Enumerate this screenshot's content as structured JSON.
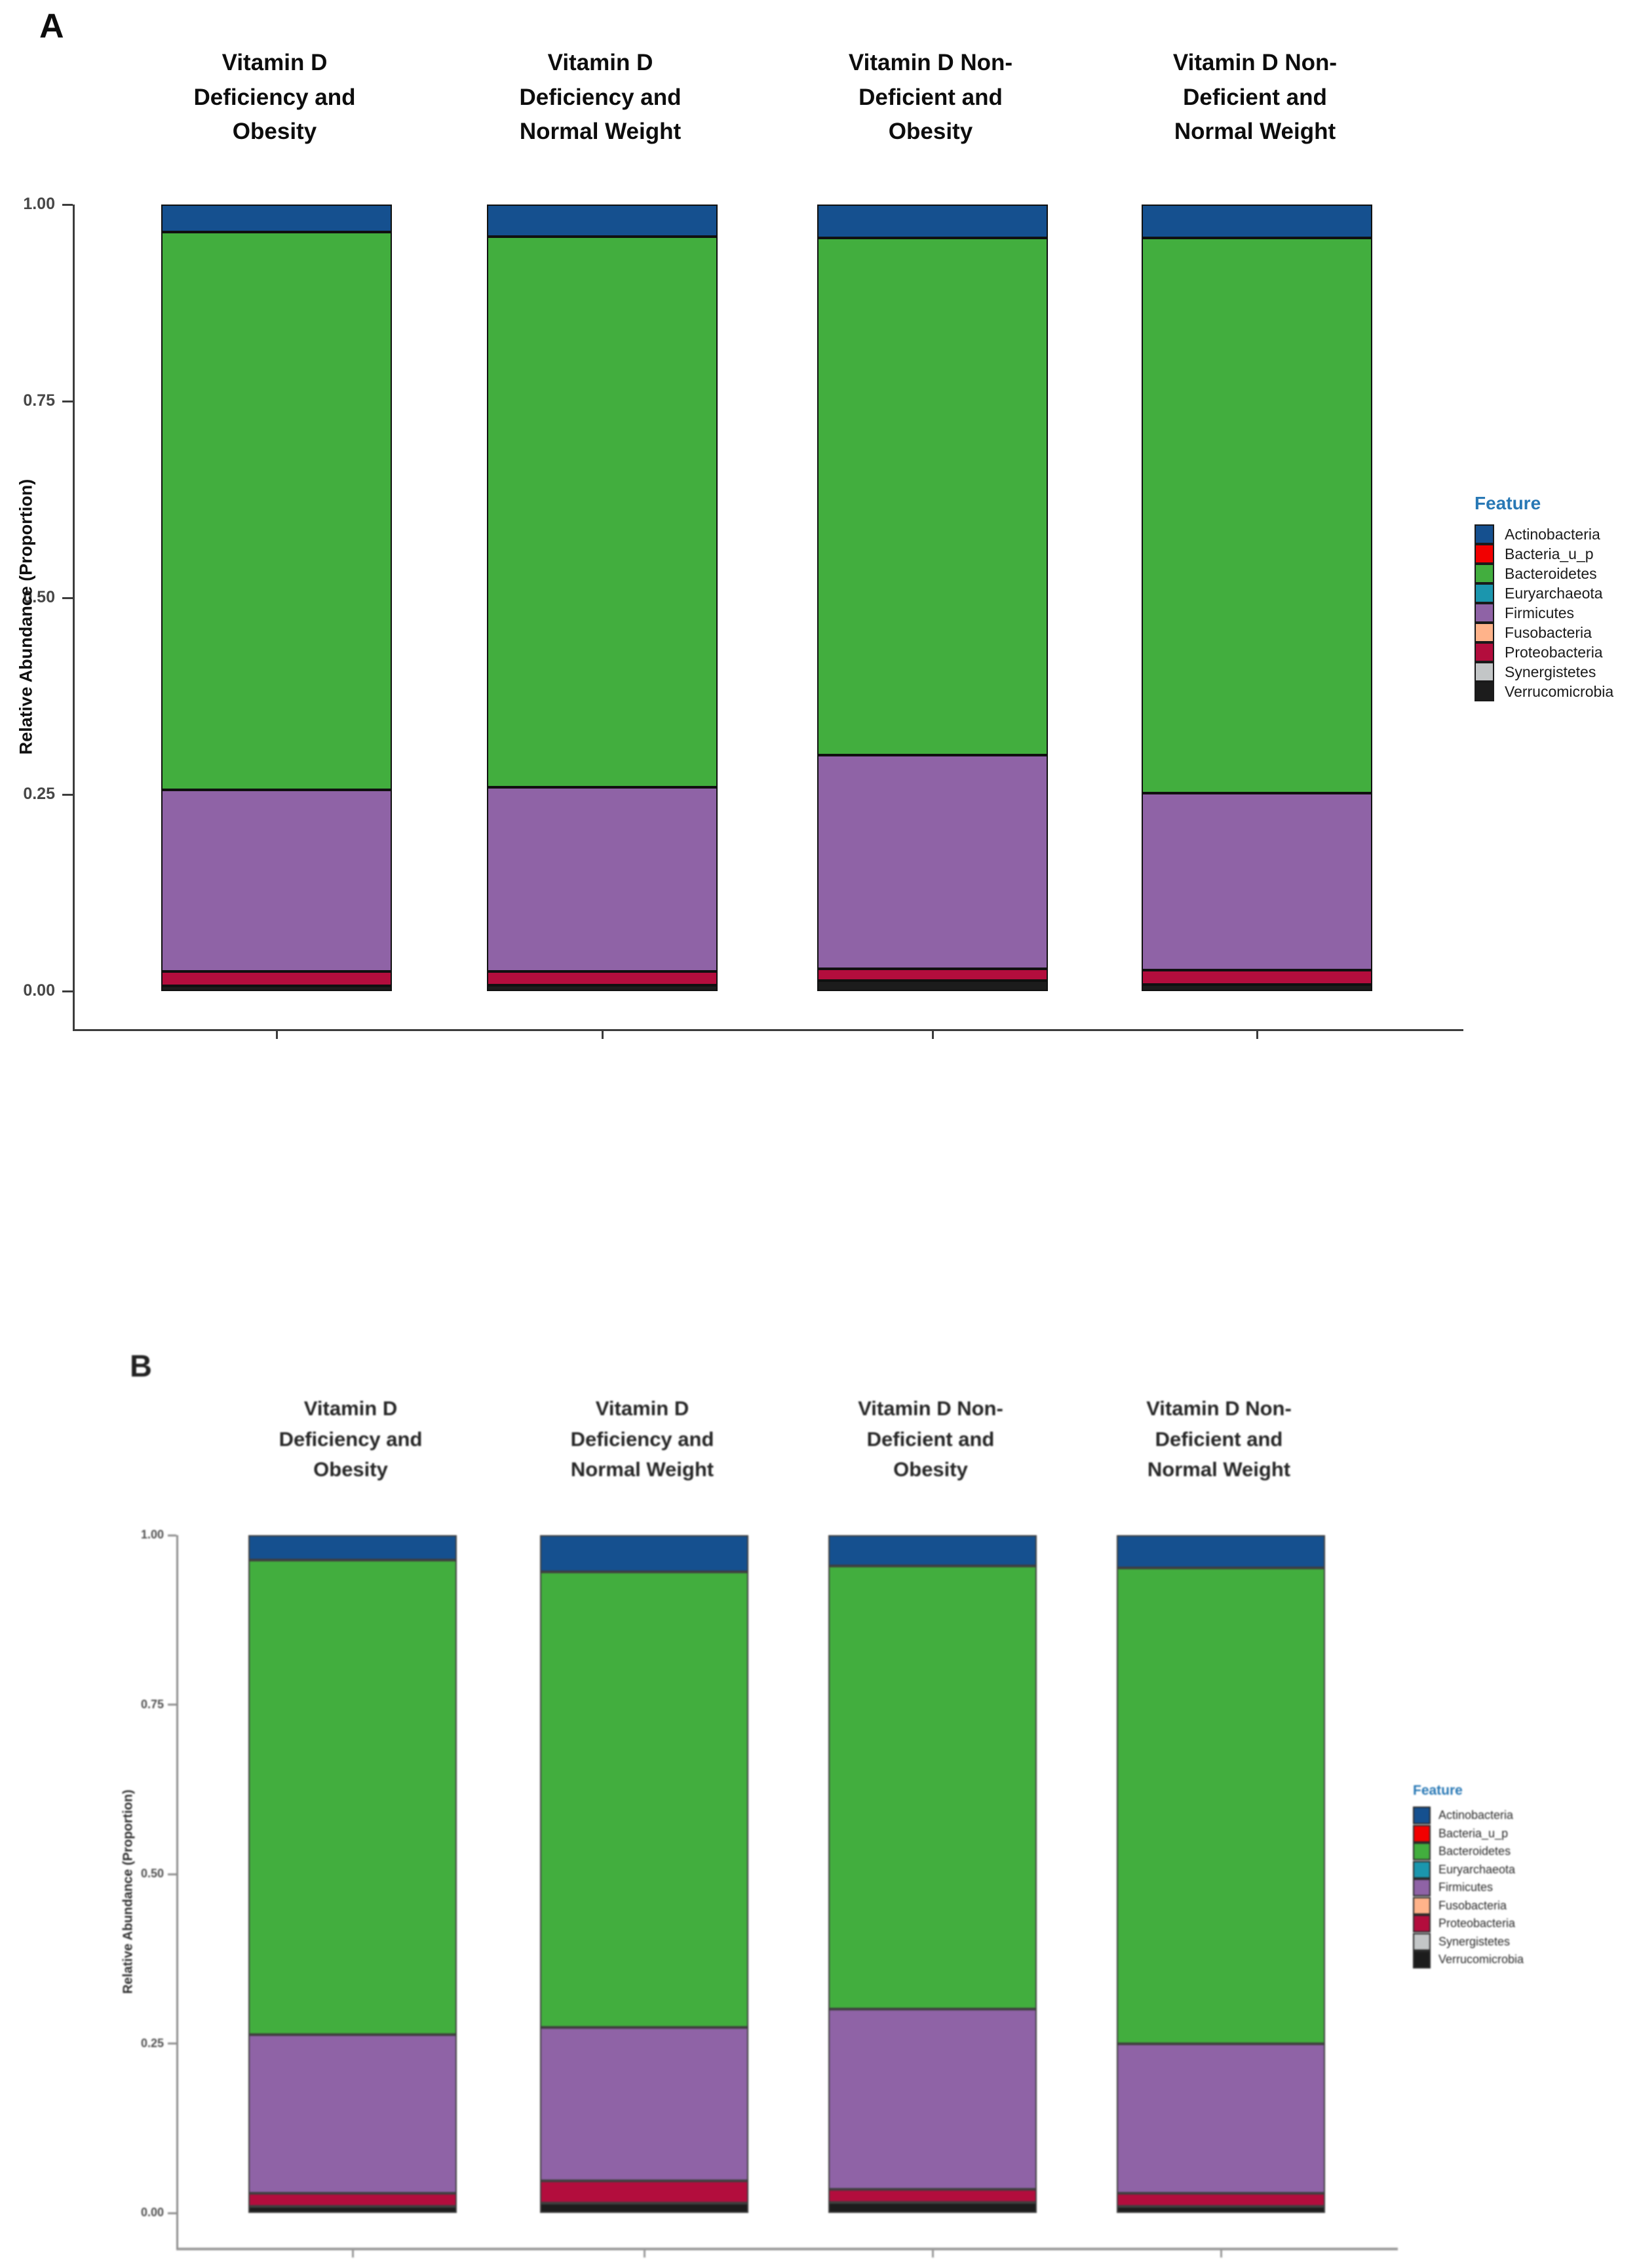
{
  "palette": {
    "Actinobacteria": "#15508f",
    "Bacteria_u_p": "#f20000",
    "Bacteroidetes": "#42ae3e",
    "Euryarchaeota": "#1b96ae",
    "Firmicutes": "#8f63a6",
    "Fusobacteria": "#ffb38a",
    "Proteobacteria": "#b30d3d",
    "Synergistetes": "#c3c6c7",
    "Verrucomicrobia": "#1c1c1c"
  },
  "legend": {
    "title": "Feature",
    "title_color": "#2878b5",
    "items": [
      "Actinobacteria",
      "Bacteria_u_p",
      "Bacteroidetes",
      "Euryarchaeota",
      "Firmicutes",
      "Fusobacteria",
      "Proteobacteria",
      "Synergistetes",
      "Verrucomicrobia"
    ]
  },
  "panels": [
    {
      "label": "A",
      "group_title_lines": [
        [
          "Vitamin D",
          "Deficiency and",
          "Obesity"
        ],
        [
          "Vitamin D",
          "Deficiency and",
          "Normal Weight"
        ],
        [
          "Vitamin D Non-",
          "Deficient and",
          "Obesity"
        ],
        [
          "Vitamin D Non-",
          "Deficient and",
          "Normal Weight"
        ]
      ]
    },
    {
      "label": "B",
      "group_title_lines": [
        [
          "Vitamin D",
          "Deficiency and",
          "Obesity"
        ],
        [
          "Vitamin D",
          "Deficiency and",
          "Normal Weight"
        ],
        [
          "Vitamin D Non-",
          "Deficient and",
          "Obesity"
        ],
        [
          "Vitamin D Non-",
          "Deficient and",
          "Normal Weight"
        ]
      ]
    }
  ],
  "chart_data": [
    {
      "type": "bar",
      "stacked": true,
      "panel": "A",
      "categories": [
        "Vitamin D Deficiency and Obesity",
        "Vitamin D Deficiency and Normal Weight",
        "Vitamin D Non-Deficient and Obesity",
        "Vitamin D Non-Deficient and Normal Weight"
      ],
      "series": [
        {
          "name": "Actinobacteria",
          "values": [
            0.032,
            0.038,
            0.04,
            0.04
          ]
        },
        {
          "name": "Bacteria_u_p",
          "values": [
            0,
            0,
            0,
            0
          ]
        },
        {
          "name": "Bacteroidetes",
          "values": [
            0.718,
            0.709,
            0.665,
            0.714
          ]
        },
        {
          "name": "Euryarchaeota",
          "values": [
            0,
            0,
            0,
            0
          ]
        },
        {
          "name": "Firmicutes",
          "values": [
            0.231,
            0.234,
            0.273,
            0.226
          ]
        },
        {
          "name": "Fusobacteria",
          "values": [
            0,
            0,
            0,
            0
          ]
        },
        {
          "name": "Proteobacteria",
          "values": [
            0.016,
            0.015,
            0.012,
            0.015
          ]
        },
        {
          "name": "Synergistetes",
          "values": [
            0,
            0,
            0,
            0
          ]
        },
        {
          "name": "Verrucomicrobia",
          "values": [
            0.003,
            0.004,
            0.01,
            0.005
          ]
        }
      ],
      "title": "",
      "xlabel": "",
      "ylabel": "Relative Abundance (Proportion)",
      "ylim": [
        0,
        1
      ],
      "yticks": [
        "1.00",
        "0.75",
        "0.50",
        "0.25",
        "0.00"
      ],
      "grid": false,
      "legend_position": "right"
    },
    {
      "type": "bar",
      "stacked": true,
      "panel": "B",
      "categories": [
        "Vitamin D Deficiency and Obesity",
        "Vitamin D Deficiency and Normal Weight",
        "Vitamin D Non-Deficient and Obesity",
        "Vitamin D Non-Deficient and Normal Weight"
      ],
      "series": [
        {
          "name": "Actinobacteria",
          "values": [
            0.034,
            0.051,
            0.042,
            0.045
          ]
        },
        {
          "name": "Bacteria_u_p",
          "values": [
            0,
            0,
            0,
            0
          ]
        },
        {
          "name": "Bacteroidetes",
          "values": [
            0.71,
            0.682,
            0.663,
            0.712
          ]
        },
        {
          "name": "Euryarchaeota",
          "values": [
            0,
            0,
            0,
            0
          ]
        },
        {
          "name": "Firmicutes",
          "values": [
            0.234,
            0.227,
            0.267,
            0.221
          ]
        },
        {
          "name": "Fusobacteria",
          "values": [
            0,
            0,
            0,
            0
          ]
        },
        {
          "name": "Proteobacteria",
          "values": [
            0.016,
            0.029,
            0.016,
            0.016
          ]
        },
        {
          "name": "Synergistetes",
          "values": [
            0,
            0,
            0,
            0
          ]
        },
        {
          "name": "Verrucomicrobia",
          "values": [
            0.006,
            0.011,
            0.012,
            0.006
          ]
        }
      ],
      "title": "",
      "xlabel": "",
      "ylabel": "Relative Abundance (Proportion)",
      "ylim": [
        0,
        1
      ],
      "yticks": [
        "1.00",
        "0.75",
        "0.50",
        "0.25",
        "0.00"
      ],
      "grid": false,
      "legend_position": "right"
    }
  ]
}
